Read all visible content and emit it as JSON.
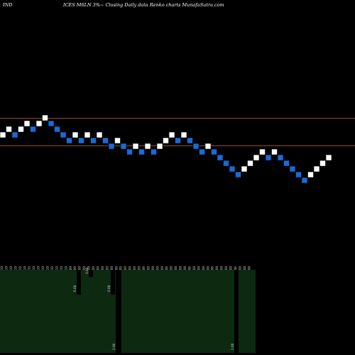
{
  "header": {
    "left": "IND",
    "center": "ICES M6LN 3%~ Closing Daily data Renko charts MunafaSutra.com"
  },
  "colors": {
    "background": "#000000",
    "up_brick": "#ffffff",
    "down_brick": "#1a6ad8",
    "brick_border": "#000000",
    "level_line": "#a0522d",
    "volume_panel": "#0d2a10",
    "volume_bar": "#000000",
    "label_text": "#cccccc"
  },
  "chart_data": {
    "type": "renko",
    "bricks": [
      {
        "dir": "up",
        "level": 8
      },
      {
        "dir": "up",
        "level": 9
      },
      {
        "dir": "down",
        "level": 8
      },
      {
        "dir": "up",
        "level": 9
      },
      {
        "dir": "up",
        "level": 10
      },
      {
        "dir": "down",
        "level": 9
      },
      {
        "dir": "up",
        "level": 10
      },
      {
        "dir": "up",
        "level": 11
      },
      {
        "dir": "down",
        "level": 10
      },
      {
        "dir": "down",
        "level": 9
      },
      {
        "dir": "down",
        "level": 8
      },
      {
        "dir": "down",
        "level": 7
      },
      {
        "dir": "up",
        "level": 8
      },
      {
        "dir": "down",
        "level": 7
      },
      {
        "dir": "up",
        "level": 8
      },
      {
        "dir": "down",
        "level": 7
      },
      {
        "dir": "up",
        "level": 8
      },
      {
        "dir": "down",
        "level": 7
      },
      {
        "dir": "down",
        "level": 6
      },
      {
        "dir": "up",
        "level": 7
      },
      {
        "dir": "down",
        "level": 6
      },
      {
        "dir": "down",
        "level": 5
      },
      {
        "dir": "up",
        "level": 6
      },
      {
        "dir": "down",
        "level": 5
      },
      {
        "dir": "up",
        "level": 6
      },
      {
        "dir": "down",
        "level": 5
      },
      {
        "dir": "up",
        "level": 6
      },
      {
        "dir": "up",
        "level": 7
      },
      {
        "dir": "up",
        "level": 8
      },
      {
        "dir": "down",
        "level": 7
      },
      {
        "dir": "up",
        "level": 8
      },
      {
        "dir": "down",
        "level": 7
      },
      {
        "dir": "down",
        "level": 6
      },
      {
        "dir": "down",
        "level": 5
      },
      {
        "dir": "up",
        "level": 6
      },
      {
        "dir": "down",
        "level": 5
      },
      {
        "dir": "down",
        "level": 4
      },
      {
        "dir": "down",
        "level": 3
      },
      {
        "dir": "down",
        "level": 2
      },
      {
        "dir": "down",
        "level": 1
      },
      {
        "dir": "up",
        "level": 2
      },
      {
        "dir": "up",
        "level": 3
      },
      {
        "dir": "up",
        "level": 4
      },
      {
        "dir": "up",
        "level": 5
      },
      {
        "dir": "down",
        "level": 4
      },
      {
        "dir": "up",
        "level": 5
      },
      {
        "dir": "down",
        "level": 4
      },
      {
        "dir": "down",
        "level": 3
      },
      {
        "dir": "down",
        "level": 2
      },
      {
        "dir": "down",
        "level": 1
      },
      {
        "dir": "down",
        "level": 0
      },
      {
        "dir": "up",
        "level": 1
      },
      {
        "dir": "up",
        "level": 2
      },
      {
        "dir": "up",
        "level": 3
      },
      {
        "dir": "up",
        "level": 4
      }
    ],
    "levels": [
      {
        "label": "",
        "value": 11.4
      },
      {
        "label": "",
        "value": 6.6
      }
    ],
    "date_labels": [
      "20.10",
      "19.10",
      "18.10",
      "17.10",
      "16.10",
      "13.10",
      "12.10",
      "11.10",
      "10.10",
      "09.10",
      "06.10",
      "05.10",
      "04.10",
      "03.10",
      "02.10",
      "29.09",
      "28.09",
      "27.09",
      "26.09",
      "25.09",
      "22.09",
      "21.09",
      "20.09",
      "19.09",
      "18.09",
      "15.09",
      "14.09",
      "13.09",
      "12.09",
      "11.09",
      "08.09",
      "07.09",
      "06.09",
      "05.09",
      "04.09",
      "01.09",
      "31.08",
      "30.08",
      "29.08",
      "28.08",
      "25.08",
      "24.08",
      "23.08",
      "22.08",
      "21.08",
      "18.08",
      "17.08",
      "16.08",
      "15.08",
      "14.08",
      "11.08",
      "10.08",
      "09.08",
      "08.08",
      "07.08"
    ],
    "volume_bars": [
      {
        "label": "6.00",
        "value": 6.0
      },
      {
        "label": "3.00",
        "value": 3.0
      },
      {
        "label": "6.00",
        "value": 6.0
      },
      {
        "label": "2.00",
        "value": 2.0
      },
      {
        "label": "2.00",
        "value": 2.0
      }
    ]
  }
}
